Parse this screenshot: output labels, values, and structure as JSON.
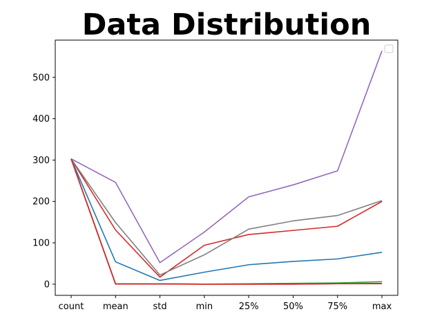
{
  "chart_data": {
    "type": "line",
    "title": "Data Distribution",
    "xlabel": "",
    "ylabel": "",
    "categories": [
      "count",
      "mean",
      "std",
      "min",
      "25%",
      "50%",
      "75%",
      "max"
    ],
    "ylim": [
      -27,
      590
    ],
    "yticks": [
      0,
      100,
      200,
      300,
      400,
      500
    ],
    "grid": false,
    "legend": "top-right",
    "series": [
      {
        "color": "#1f77b4",
        "values": [
          303,
          54,
          9,
          29,
          47,
          55,
          61,
          77
        ]
      },
      {
        "color": "#ff7f0e",
        "values": [
          303,
          1,
          0.5,
          0,
          0,
          1,
          1,
          1
        ]
      },
      {
        "color": "#2ca02c",
        "values": [
          303,
          1,
          1,
          0,
          1,
          2,
          3,
          6
        ]
      },
      {
        "color": "#d62728",
        "values": [
          303,
          131,
          17,
          94,
          120,
          130,
          140,
          200
        ]
      },
      {
        "color": "#9467bd",
        "values": [
          303,
          246,
          52,
          126,
          211,
          240,
          274,
          564
        ]
      },
      {
        "color": "#8c564b",
        "values": [
          303,
          0.5,
          0.5,
          0,
          0,
          0,
          1,
          1
        ]
      },
      {
        "color": "#7f7f7f",
        "values": [
          303,
          149,
          22,
          71,
          133,
          153,
          166,
          202
        ]
      },
      {
        "color": "#d62728",
        "values": [
          303,
          0.5,
          0.5,
          0,
          0,
          0,
          1,
          2
        ]
      }
    ]
  }
}
